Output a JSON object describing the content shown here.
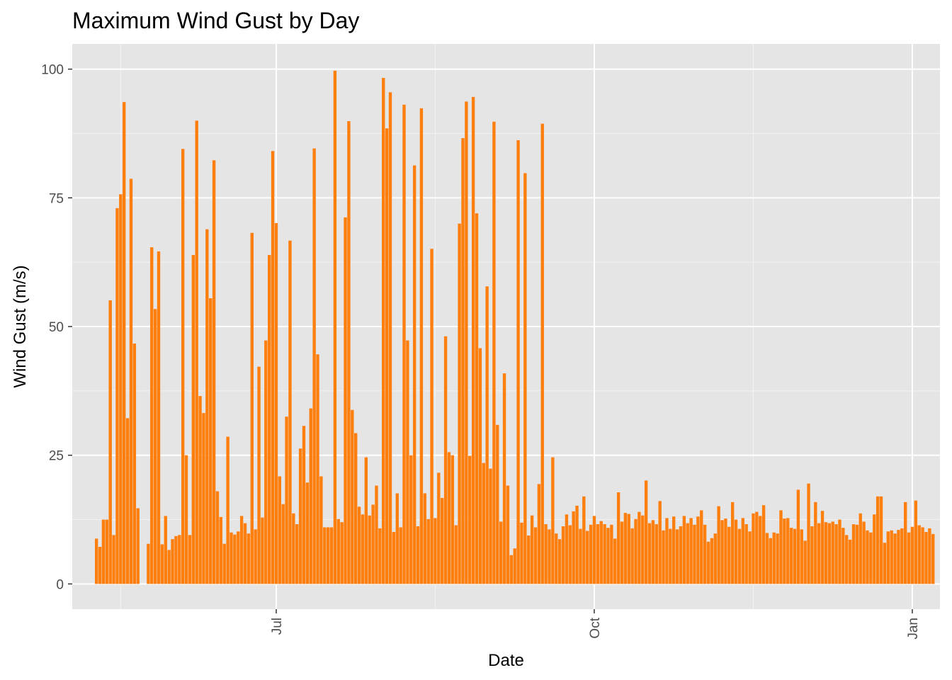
{
  "chart_data": {
    "type": "bar",
    "title": "Maximum Wind Gust by Day",
    "xlabel": "Date",
    "ylabel": "Wind Gust (m/s)",
    "x_start": "2017-05-10",
    "x_end": "2017-12-31",
    "xlim": [
      "2017-05-03",
      "2018-01-09"
    ],
    "ylim": [
      -4.9,
      104.9
    ],
    "y_ticks": [
      0,
      25,
      50,
      75,
      100
    ],
    "x_ticks": [
      {
        "date": "2017-07-01",
        "label": "Jul"
      },
      {
        "date": "2017-10-01",
        "label": "Oct"
      },
      {
        "date": "2018-01-01",
        "label": "Jan"
      }
    ],
    "x_minor_ticks": [
      "2017-05-17",
      "2017-08-16",
      "2017-11-16"
    ],
    "bar_color": "#ff7f0e",
    "panel_color": "#e5e5e5",
    "grid": true,
    "values": [
      8.8,
      7.2,
      12.5,
      12.5,
      55.1,
      9.5,
      73.0,
      75.7,
      93.6,
      32.2,
      78.7,
      46.7,
      14.7,
      0,
      0,
      7.8,
      65.4,
      53.4,
      64.6,
      7.7,
      13.2,
      6.6,
      8.7,
      9.3,
      9.5,
      84.5,
      25.0,
      9.5,
      63.9,
      90.0,
      36.5,
      33.2,
      68.9,
      55.5,
      82.3,
      18.0,
      13.0,
      7.8,
      28.6,
      10.0,
      9.6,
      10.2,
      13.2,
      11.8,
      9.8,
      68.2,
      10.6,
      42.2,
      12.9,
      47.3,
      63.9,
      84.1,
      70.1,
      20.9,
      15.5,
      32.5,
      66.7,
      13.7,
      11.6,
      26.3,
      30.7,
      19.7,
      34.1,
      84.6,
      44.6,
      20.9,
      11.0,
      11.0,
      11.0,
      99.7,
      12.6,
      12.0,
      71.2,
      89.9,
      33.8,
      29.3,
      15.0,
      13.5,
      24.6,
      13.3,
      15.4,
      19.1,
      10.8,
      98.3,
      88.5,
      95.5,
      10.1,
      17.6,
      11.0,
      93.1,
      47.3,
      25.0,
      81.3,
      11.2,
      92.4,
      17.6,
      12.6,
      65.1,
      12.8,
      21.6,
      16.7,
      48.1,
      25.6,
      25.0,
      11.4,
      70.0,
      86.6,
      93.7,
      24.9,
      94.6,
      72.0,
      45.8,
      23.5,
      57.8,
      22.4,
      89.8,
      30.9,
      12.1,
      40.9,
      19.1,
      5.6,
      6.9,
      86.2,
      11.9,
      79.8,
      9.4,
      13.3,
      11.0,
      19.4,
      89.4,
      11.6,
      10.6,
      24.6,
      9.8,
      8.7,
      11.2,
      13.5,
      11.4,
      14.1,
      15.2,
      10.7,
      17.0,
      10.3,
      11.5,
      13.2,
      11.6,
      12.2,
      11.6,
      10.9,
      11.5,
      8.8,
      17.8,
      12.1,
      13.8,
      13.6,
      10.8,
      12.6,
      14.0,
      13.3,
      20.1,
      11.8,
      12.4,
      11.6,
      16.1,
      10.4,
      12.8,
      10.7,
      13.1,
      10.6,
      11.2,
      13.2,
      11.8,
      12.8,
      11.5,
      13.1,
      14.3,
      11.5,
      8.2,
      8.9,
      9.8,
      15.1,
      12.4,
      12.7,
      11.1,
      15.9,
      12.5,
      10.7,
      12.8,
      11.6,
      10.2,
      13.7,
      14.0,
      13.2,
      15.3,
      9.9,
      8.9,
      10.0,
      9.8,
      14.3,
      12.7,
      12.8,
      10.9,
      10.7,
      18.3,
      10.6,
      8.4,
      19.5,
      11.2,
      15.9,
      11.8,
      14.2,
      12.0,
      11.8,
      12.1,
      11.6,
      12.5,
      10.9,
      9.5,
      8.6,
      11.6,
      11.5,
      13.7,
      12.1,
      10.4,
      10.0,
      13.5,
      17.0,
      17.0,
      8.0,
      10.2,
      10.4,
      9.8,
      10.5,
      10.8,
      15.9,
      10.0,
      11.1,
      16.2,
      11.4,
      11.0,
      10.1,
      10.8,
      9.7
    ]
  }
}
